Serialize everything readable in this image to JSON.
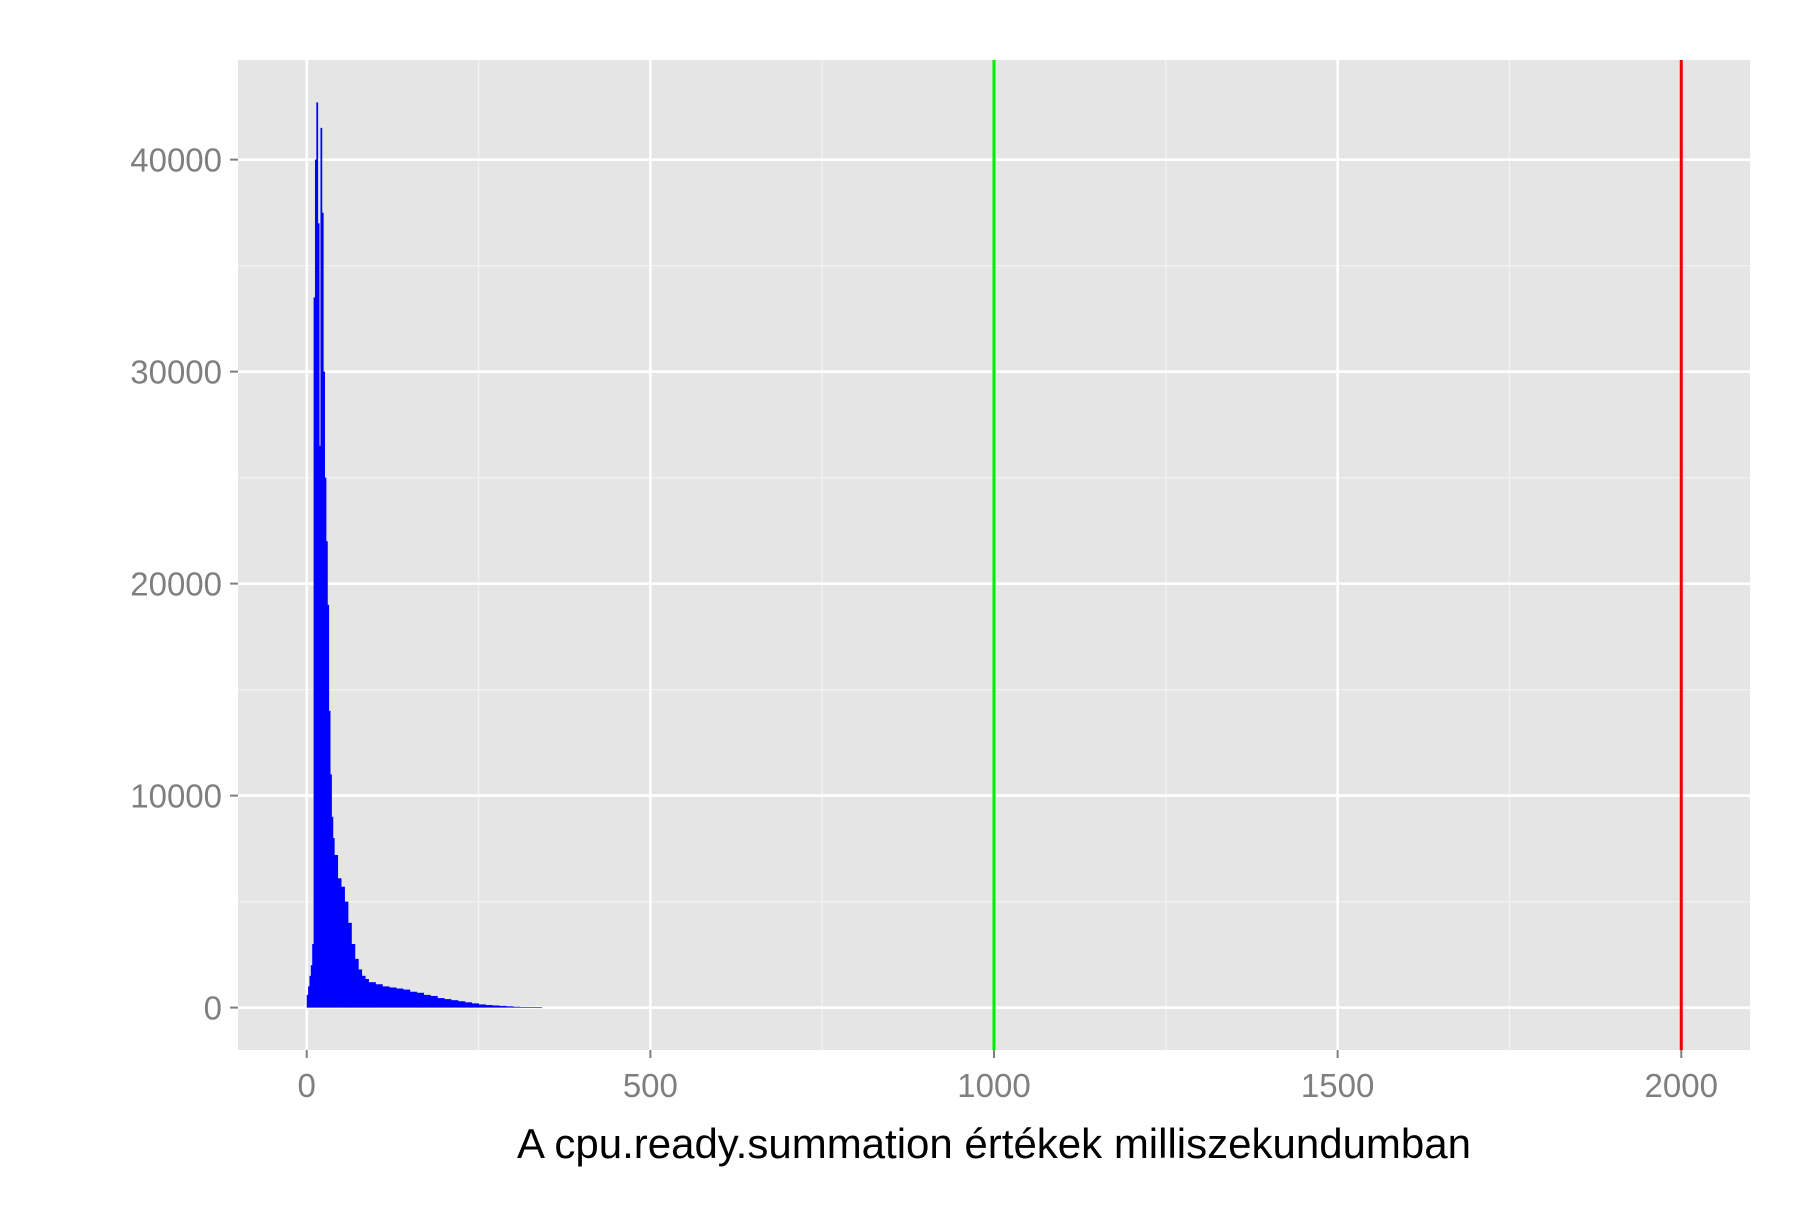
{
  "chart_data": {
    "type": "histogram",
    "title": "",
    "xlabel": "A cpu.ready.summation értékek milliszekundumban",
    "ylabel": "",
    "xlim": [
      -100,
      2100
    ],
    "ylim": [
      -2000,
      44700
    ],
    "x_ticks": [
      0,
      500,
      1000,
      1500,
      2000
    ],
    "x_tick_labels": [
      "0",
      "500",
      "1000",
      "1500",
      "2000"
    ],
    "y_ticks": [
      0,
      10000,
      20000,
      30000,
      40000
    ],
    "y_tick_labels": [
      "0",
      "10000",
      "20000",
      "30000",
      "40000"
    ],
    "grid": true,
    "legend": "none",
    "bar_color": "#0000ff",
    "background": "#e5e5e5",
    "grid_color": "#ffffff",
    "tick_label_color": "#7f7f7f",
    "bin_width": 2,
    "series": [
      {
        "x": [
          0,
          2,
          4,
          6,
          8,
          10,
          12,
          14,
          16,
          18,
          20,
          22,
          24,
          26,
          28,
          30,
          32,
          34,
          36,
          38,
          40,
          45,
          50,
          55,
          60,
          65,
          70,
          75,
          80,
          85,
          90,
          100,
          110,
          120,
          130,
          140,
          150,
          160,
          170,
          180,
          190,
          200,
          210,
          220,
          230,
          240,
          250,
          260,
          270,
          280,
          290,
          300,
          310,
          320,
          330,
          340
        ],
        "values": [
          600,
          1000,
          1500,
          2000,
          3000,
          33500,
          40000,
          42700,
          37000,
          26500,
          41500,
          37500,
          30000,
          25000,
          22000,
          19000,
          14000,
          11000,
          9000,
          8000,
          7200,
          6100,
          5700,
          5000,
          4000,
          3000,
          2300,
          1800,
          1500,
          1350,
          1200,
          1100,
          1000,
          950,
          900,
          850,
          750,
          700,
          600,
          550,
          450,
          400,
          350,
          300,
          250,
          200,
          150,
          120,
          100,
          80,
          60,
          40,
          30,
          20,
          10,
          5
        ]
      }
    ],
    "vlines": [
      {
        "x": 1000,
        "color": "#00ee00"
      },
      {
        "x": 2000,
        "color": "#ee0000"
      }
    ]
  }
}
